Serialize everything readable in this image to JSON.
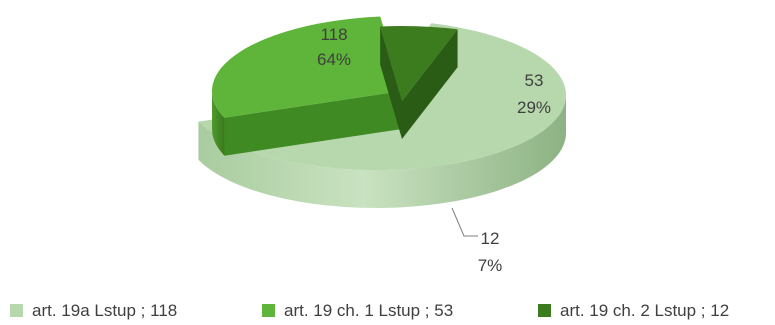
{
  "chart_data": {
    "type": "pie",
    "style": "3d-exploded",
    "slices": [
      {
        "label": "art. 19a Lstup",
        "value": 118,
        "percent": "64%",
        "color": "#b7d8ad",
        "side": "#8fb684"
      },
      {
        "label": "art. 19 ch. 1 Lstup",
        "value": 53,
        "percent": "29%",
        "color": "#5fb53a",
        "side": "#3f8a22"
      },
      {
        "label": "art. 19 ch. 2 Lstup",
        "value": 12,
        "percent": "7%",
        "color": "#3c7c1f",
        "side": "#2b5c15"
      }
    ],
    "legend": {
      "placement": "bottom",
      "items": [
        "art. 19a Lstup ; 118",
        "art. 19 ch. 1 Lstup ; 53",
        "art. 19 ch. 2 Lstup ; 12"
      ]
    }
  }
}
